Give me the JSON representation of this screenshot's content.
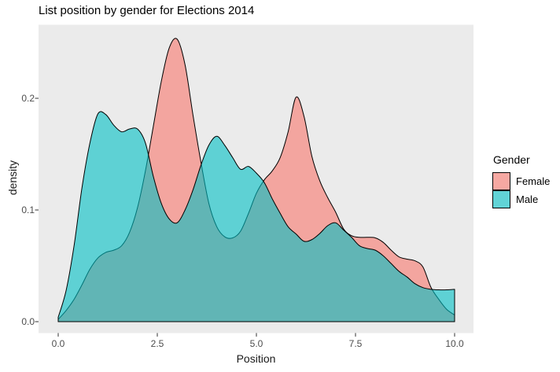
{
  "chart": {
    "title": "List position by gender for Elections 2014",
    "x_axis_label": "Position",
    "y_axis_label": "density"
  },
  "legend": {
    "title": "Gender",
    "entries": [
      {
        "label": "Female",
        "color": "#F8766D"
      },
      {
        "label": "Male",
        "color": "#00BFC4"
      }
    ]
  },
  "colors": {
    "page_background": "#FFFFFF",
    "panel_background": "#EBEBEB",
    "female_fill": "#F8766D",
    "male_fill": "#00BFC4",
    "fill_alpha": 0.6,
    "outline": "#000000",
    "tick_mark": "#333333",
    "tick_label": "#4D4D4D",
    "legend_key_background": "#F2F2F2"
  },
  "chart_data": {
    "type": "area",
    "subtype": "density",
    "title": "List position by gender for Elections 2014",
    "xlabel": "Position",
    "ylabel": "density",
    "xlim": [
      0,
      10
    ],
    "ylim": [
      0,
      0.26
    ],
    "grid": false,
    "legend_position": "right",
    "x_ticks": [
      0,
      2.5,
      5,
      7.5,
      10
    ],
    "x_tick_labels": [
      "0.0",
      "2.5",
      "5.0",
      "7.5",
      "10.0"
    ],
    "y_ticks": [
      0,
      0.1,
      0.2
    ],
    "y_tick_labels": [
      "0.0",
      "0.1",
      "0.2"
    ],
    "x": [
      0,
      0.2,
      0.4,
      0.6,
      0.8,
      1.0,
      1.2,
      1.4,
      1.6,
      1.8,
      2.0,
      2.2,
      2.4,
      2.6,
      2.8,
      3.0,
      3.2,
      3.4,
      3.6,
      3.8,
      4.0,
      4.2,
      4.4,
      4.6,
      4.8,
      5.0,
      5.2,
      5.4,
      5.6,
      5.8,
      6.0,
      6.2,
      6.4,
      6.6,
      6.8,
      7.0,
      7.2,
      7.4,
      7.6,
      7.8,
      8.0,
      8.2,
      8.4,
      8.6,
      8.8,
      9.0,
      9.2,
      9.4,
      9.6,
      9.8,
      10.0
    ],
    "series": [
      {
        "name": "Female",
        "color": "#F8766D",
        "values": [
          0.002,
          0.01,
          0.02,
          0.033,
          0.047,
          0.057,
          0.062,
          0.064,
          0.068,
          0.08,
          0.102,
          0.135,
          0.175,
          0.215,
          0.245,
          0.253,
          0.23,
          0.185,
          0.143,
          0.106,
          0.085,
          0.076,
          0.075,
          0.081,
          0.097,
          0.115,
          0.127,
          0.135,
          0.147,
          0.17,
          0.201,
          0.184,
          0.148,
          0.126,
          0.111,
          0.098,
          0.083,
          0.077,
          0.0755,
          0.0755,
          0.075,
          0.071,
          0.064,
          0.058,
          0.056,
          0.0545,
          0.049,
          0.031,
          0.02,
          0.011,
          0.006
        ]
      },
      {
        "name": "Male",
        "color": "#00BFC4",
        "values": [
          0.004,
          0.028,
          0.068,
          0.12,
          0.16,
          0.186,
          0.1855,
          0.176,
          0.17,
          0.1725,
          0.1725,
          0.16,
          0.13,
          0.106,
          0.092,
          0.0885,
          0.1,
          0.118,
          0.14,
          0.158,
          0.166,
          0.158,
          0.147,
          0.1365,
          0.139,
          0.133,
          0.1245,
          0.11,
          0.097,
          0.085,
          0.0785,
          0.072,
          0.0735,
          0.079,
          0.086,
          0.0885,
          0.082,
          0.0755,
          0.068,
          0.0655,
          0.064,
          0.059,
          0.052,
          0.045,
          0.04,
          0.034,
          0.0305,
          0.029,
          0.0285,
          0.0285,
          0.029
        ]
      }
    ]
  }
}
